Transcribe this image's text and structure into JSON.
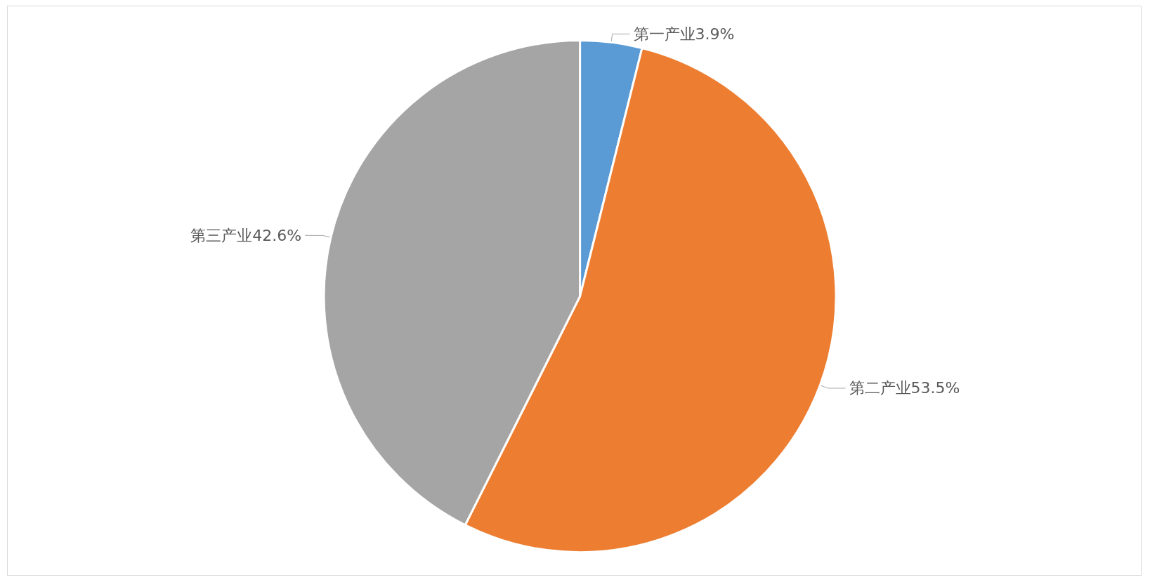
{
  "chart_data": {
    "type": "pie",
    "categories": [
      "第一产业",
      "第二产业",
      "第三产业"
    ],
    "values": [
      3.9,
      53.5,
      42.6
    ],
    "value_labels": [
      "3.9%",
      "53.5%",
      "42.6%"
    ],
    "colors": [
      "#5b9bd5",
      "#ed7d31",
      "#a5a5a5"
    ],
    "legend": false
  }
}
